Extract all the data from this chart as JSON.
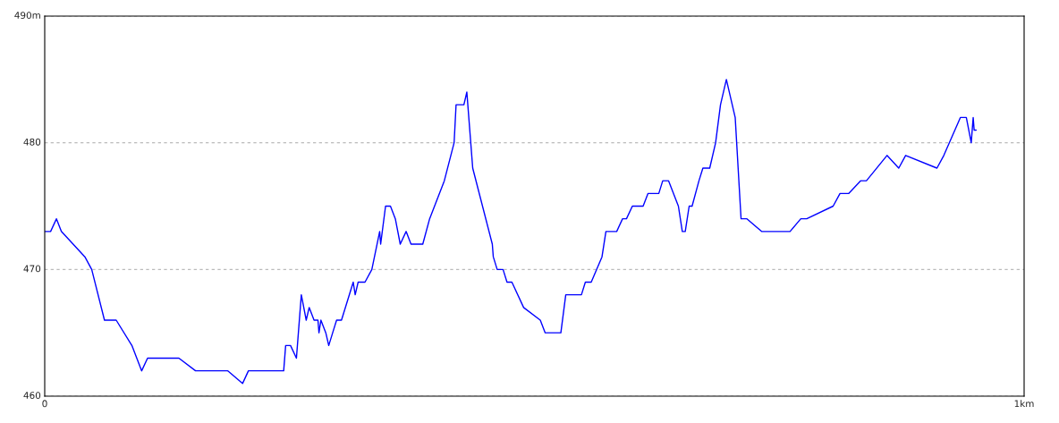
{
  "chart_data": {
    "type": "line",
    "x": [
      0,
      0.006,
      0.012,
      0.017,
      0.041,
      0.048,
      0.061,
      0.073,
      0.089,
      0.099,
      0.105,
      0.137,
      0.154,
      0.187,
      0.202,
      0.208,
      0.244,
      0.246,
      0.251,
      0.257,
      0.262,
      0.267,
      0.27,
      0.275,
      0.279,
      0.28,
      0.282,
      0.287,
      0.29,
      0.294,
      0.298,
      0.303,
      0.315,
      0.317,
      0.32,
      0.327,
      0.334,
      0.342,
      0.343,
      0.348,
      0.353,
      0.358,
      0.363,
      0.369,
      0.374,
      0.386,
      0.393,
      0.408,
      0.418,
      0.42,
      0.428,
      0.431,
      0.433,
      0.437,
      0.457,
      0.458,
      0.462,
      0.468,
      0.472,
      0.477,
      0.489,
      0.506,
      0.511,
      0.527,
      0.532,
      0.548,
      0.552,
      0.558,
      0.569,
      0.573,
      0.584,
      0.59,
      0.594,
      0.6,
      0.611,
      0.616,
      0.627,
      0.631,
      0.637,
      0.647,
      0.651,
      0.654,
      0.658,
      0.661,
      0.668,
      0.672,
      0.679,
      0.685,
      0.69,
      0.696,
      0.705,
      0.711,
      0.717,
      0.732,
      0.761,
      0.772,
      0.778,
      0.805,
      0.812,
      0.821,
      0.833,
      0.839,
      0.86,
      0.872,
      0.879,
      0.911,
      0.918,
      0.935,
      0.941,
      0.946,
      0.948,
      0.949,
      0.951
    ],
    "series": [
      {
        "color": "#0000ff",
        "values": [
          473,
          473,
          474,
          473,
          471,
          470,
          466,
          466,
          464,
          462,
          463,
          463,
          462,
          462,
          461,
          462,
          462,
          464,
          464,
          463,
          468,
          466,
          467,
          466,
          466,
          465,
          466,
          465,
          464,
          465,
          466,
          466,
          469,
          468,
          469,
          469,
          470,
          473,
          472,
          475,
          475,
          474,
          472,
          473,
          472,
          472,
          474,
          477,
          480,
          483,
          483,
          484,
          482,
          478,
          472,
          471,
          470,
          470,
          469,
          469,
          467,
          466,
          465,
          465,
          468,
          468,
          469,
          469,
          471,
          473,
          473,
          474,
          474,
          475,
          475,
          476,
          476,
          477,
          477,
          475,
          473,
          473,
          475,
          475,
          477,
          478,
          478,
          480,
          483,
          485,
          482,
          474,
          474,
          473,
          473,
          474,
          474,
          475,
          476,
          476,
          477,
          477,
          479,
          478,
          479,
          478,
          479,
          482,
          482,
          480,
          482,
          481,
          481
        ]
      }
    ],
    "xlim": [
      0,
      1
    ],
    "xticks": [
      {
        "value": 0,
        "label": "0"
      },
      {
        "value": 1,
        "label": "1km"
      }
    ],
    "ylim": [
      460,
      490
    ],
    "yticks": [
      460,
      470,
      480,
      {
        "value": 490,
        "label": "490m"
      }
    ],
    "grid": "y",
    "line_style": "solid"
  }
}
